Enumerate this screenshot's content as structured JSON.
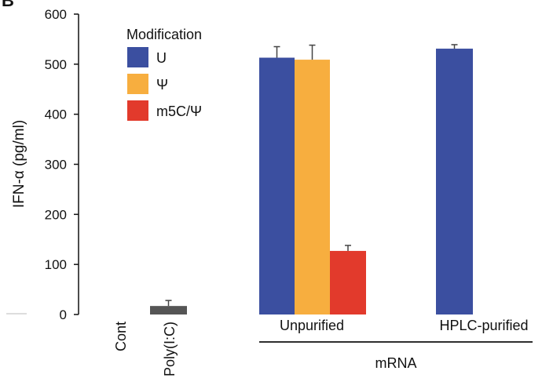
{
  "chart_data": {
    "type": "bar",
    "panel_label": "B",
    "ylabel": "IFN-α (pg/ml)",
    "ylim": [
      0,
      600
    ],
    "yticks": [
      0,
      100,
      200,
      300,
      400,
      500,
      600
    ],
    "grid": false,
    "legend": {
      "title": "Modification",
      "placement": "top-left",
      "entries": [
        {
          "label": "U",
          "color": "#3B4FA0"
        },
        {
          "label": "Ψ",
          "color": "#F7AE3F"
        },
        {
          "label": "m5C/Ψ",
          "color": "#E23A2C"
        }
      ]
    },
    "categories": [
      "Cont",
      "Poly(I:C)",
      "Unpurified",
      "HPLC-purified"
    ],
    "group_label": "mRNA",
    "grouped_categories": [
      "Unpurified",
      "HPLC-purified"
    ],
    "bars": [
      {
        "category": "Cont",
        "series": "control",
        "value": 0,
        "error": 0,
        "color": "#555555"
      },
      {
        "category": "Poly(I:C)",
        "series": "control",
        "value": 17,
        "error": 11,
        "color": "#555555"
      },
      {
        "category": "Unpurified",
        "series": "U",
        "value": 513,
        "error": 22,
        "color": "#3B4FA0"
      },
      {
        "category": "Unpurified",
        "series": "Ψ",
        "value": 509,
        "error": 29,
        "color": "#F7AE3F"
      },
      {
        "category": "Unpurified",
        "series": "m5C/Ψ",
        "value": 127,
        "error": 11,
        "color": "#E23A2C"
      },
      {
        "category": "HPLC-purified",
        "series": "U",
        "value": 531,
        "error": 8,
        "color": "#3B4FA0"
      }
    ]
  }
}
